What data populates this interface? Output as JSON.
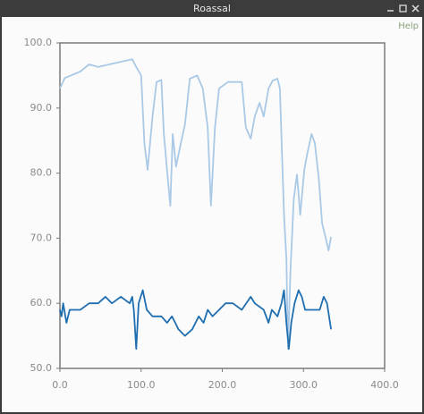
{
  "window": {
    "title": "Roassal",
    "help": "Help"
  },
  "chart_data": {
    "type": "line",
    "xlim": [
      0,
      400
    ],
    "ylim": [
      50,
      100
    ],
    "xticks": [
      {
        "value": 0,
        "label": "0.0"
      },
      {
        "value": 100,
        "label": "100.0"
      },
      {
        "value": 200,
        "label": "200.0"
      },
      {
        "value": 300,
        "label": "300.0"
      },
      {
        "value": 400,
        "label": "400.0"
      }
    ],
    "yticks": [
      {
        "value": 50,
        "label": "50.0"
      },
      {
        "value": 60,
        "label": "60.0"
      },
      {
        "value": 70,
        "label": "70.0"
      },
      {
        "value": 80,
        "label": "80.0"
      },
      {
        "value": 90,
        "label": "90.0"
      },
      {
        "value": 100,
        "label": "100.0"
      }
    ],
    "grid": false,
    "series": [
      {
        "color": "#a9c9e6",
        "x": [
          0,
          6,
          25,
          36,
          47,
          89,
          94,
          100,
          104,
          108,
          114,
          119,
          125,
          128,
          133,
          136,
          139,
          143,
          149,
          154,
          160,
          169,
          176,
          182,
          186,
          191,
          196,
          207,
          224,
          229,
          235,
          240,
          246,
          251,
          257,
          262,
          268,
          271,
          276,
          279,
          281,
          284,
          288,
          292,
          296,
          301,
          305,
          310,
          314,
          319,
          323,
          327,
          331,
          334
        ],
        "values": [
          93,
          94.6,
          95.6,
          96.7,
          96.3,
          97.5,
          96.3,
          95,
          84.6,
          80.5,
          88.7,
          94,
          94.3,
          86,
          79,
          75,
          86,
          81,
          84.6,
          87.5,
          94.5,
          95,
          93,
          87,
          75,
          87,
          93,
          94,
          94,
          87,
          85.3,
          88.7,
          90.8,
          88.7,
          93,
          94.2,
          94.5,
          93,
          73.6,
          66.8,
          53,
          65,
          76,
          79.8,
          73.6,
          80.5,
          83.2,
          86,
          84.6,
          79,
          72.3,
          70.2,
          68.1,
          70.2
        ]
      },
      {
        "color": "#1f6eb0",
        "x": [
          0,
          2,
          4,
          8,
          12,
          25,
          36,
          47,
          56,
          64,
          75,
          86,
          89,
          91,
          94,
          97,
          102,
          107,
          114,
          125,
          132,
          138,
          142,
          146,
          154,
          163,
          171,
          177,
          182,
          188,
          196,
          204,
          213,
          224,
          235,
          240,
          251,
          257,
          261,
          268,
          273,
          276,
          279,
          282,
          285,
          289,
          294,
          298,
          302,
          311,
          320,
          325,
          329,
          334
        ],
        "values": [
          59,
          58,
          60,
          57,
          59,
          59,
          60,
          60,
          61,
          60,
          61,
          60,
          61,
          59,
          53,
          60,
          62,
          59,
          58,
          58,
          57,
          58,
          57,
          56,
          55,
          56,
          58,
          57,
          59,
          58,
          59,
          60,
          60,
          59,
          61,
          60,
          59,
          57,
          59,
          58,
          60,
          62,
          57,
          53,
          57,
          60,
          62,
          61,
          59,
          59,
          59,
          61,
          60,
          56
        ]
      }
    ]
  }
}
